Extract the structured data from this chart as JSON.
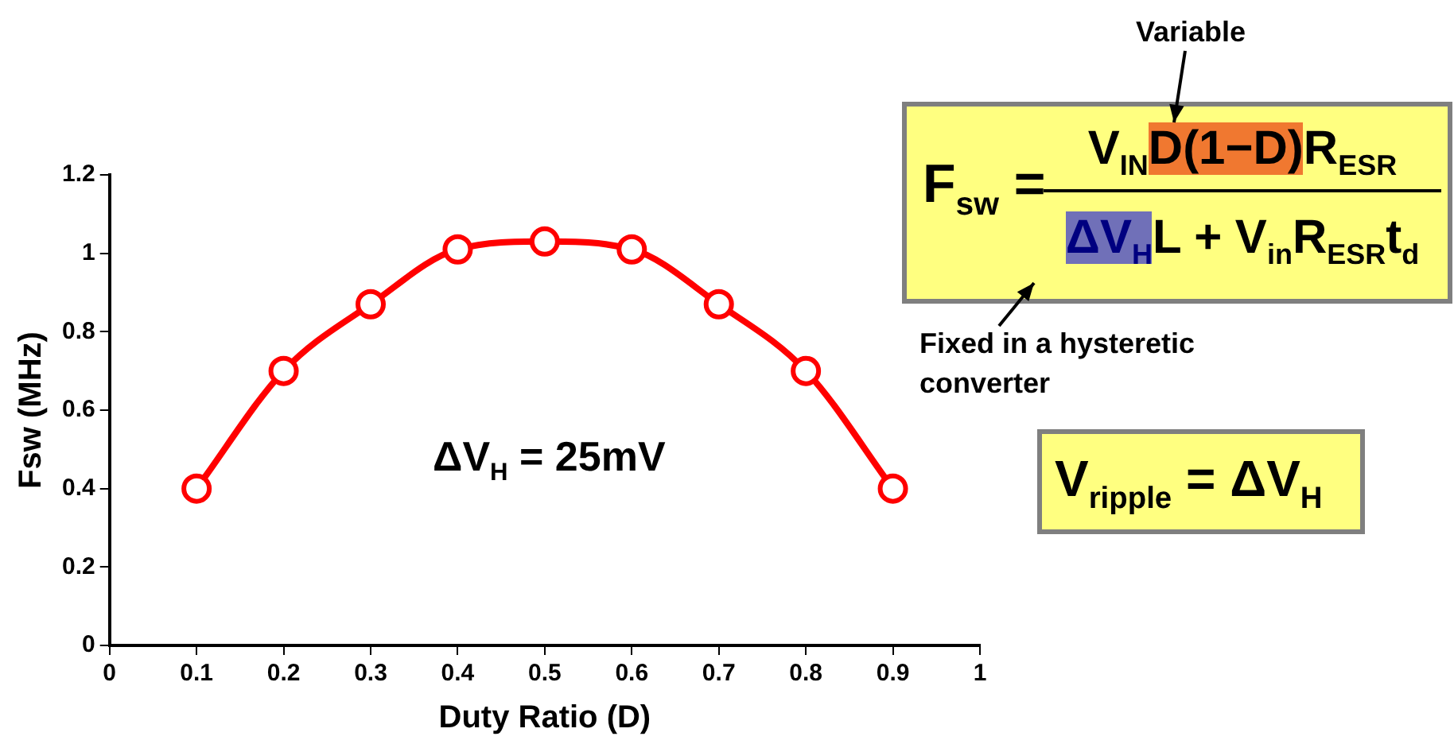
{
  "chart_data": {
    "type": "line",
    "xlabel": "Duty Ratio (D)",
    "ylabel": "Fsw (MHz)",
    "x": [
      0.1,
      0.2,
      0.3,
      0.4,
      0.5,
      0.6,
      0.7,
      0.8,
      0.9
    ],
    "series": [
      {
        "color": "#ff0000",
        "values": [
          0.4,
          0.7,
          0.87,
          1.01,
          1.03,
          1.01,
          0.87,
          0.7,
          0.4
        ]
      }
    ],
    "xlim": [
      0,
      1
    ],
    "xticks": [
      0,
      0.1,
      0.2,
      0.3,
      0.4,
      0.5,
      0.6,
      0.7,
      0.8,
      0.9,
      1
    ],
    "ylim": [
      0,
      1.2
    ],
    "yticks": [
      0,
      0.2,
      0.4,
      0.6,
      0.8,
      1,
      1.2
    ],
    "grid": false,
    "legend": false,
    "marker": "circle",
    "line_style": "solid",
    "annotations": [
      "Variable",
      "Fixed in a hysteretic converter",
      "ΔV$_{H}$ = 25mV",
      "F$_{sw}$ =",
      "V$_{IN}$",
      "D(1−D)",
      "R$_{ESR}$",
      "ΔV$_{H}$",
      "L + V$_{in}$R$_{ESR}$t$_{d}$",
      "V$_{ripple}$ = ΔV$_{H}$"
    ]
  }
}
